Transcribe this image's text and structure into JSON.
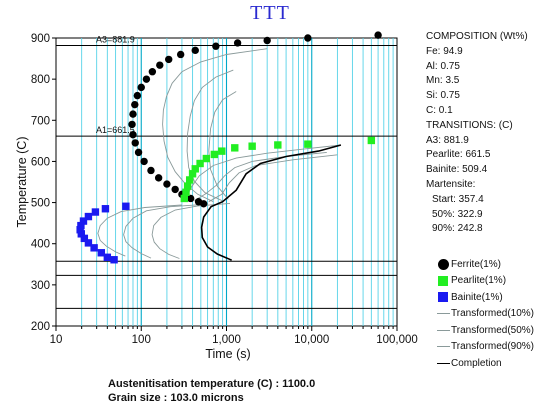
{
  "title": "TTT",
  "chart_data": {
    "type": "scatter",
    "xlabel": "Time (s)",
    "ylabel": "Temperature (C)",
    "x_scale": "log",
    "xlim": [
      10,
      100000
    ],
    "ylim": [
      200,
      900
    ],
    "x_ticks": [
      {
        "value": 10,
        "label": "10"
      },
      {
        "value": 100,
        "label": "100"
      },
      {
        "value": 1000,
        "label": "1,000"
      },
      {
        "value": 10000,
        "label": "10,000"
      },
      {
        "value": 100000,
        "label": "100,000"
      }
    ],
    "y_ticks": [
      200,
      300,
      400,
      500,
      600,
      700,
      800,
      900
    ],
    "grid": "vertical (log decades)",
    "horizontal_lines": [
      {
        "value": 881.9,
        "label": "A3=881.9"
      },
      {
        "value": 661.5,
        "label": "A1=661.5"
      },
      {
        "value": 357.4,
        "label": ""
      },
      {
        "value": 322.9,
        "label": ""
      },
      {
        "value": 242.8,
        "label": ""
      }
    ],
    "series": [
      {
        "name": "Ferrite(1%)",
        "marker": "circle",
        "color": "#000000",
        "points": [
          [
            540,
            497
          ],
          [
            470,
            502
          ],
          [
            380,
            510
          ],
          [
            300,
            520
          ],
          [
            250,
            532
          ],
          [
            200,
            545
          ],
          [
            160,
            560
          ],
          [
            130,
            578
          ],
          [
            108,
            600
          ],
          [
            93,
            622
          ],
          [
            85,
            645
          ],
          [
            80,
            665
          ],
          [
            78,
            690
          ],
          [
            80,
            715
          ],
          [
            84,
            738
          ],
          [
            90,
            760
          ],
          [
            100,
            780
          ],
          [
            115,
            800
          ],
          [
            135,
            818
          ],
          [
            165,
            834
          ],
          [
            210,
            848
          ],
          [
            290,
            860
          ],
          [
            430,
            870
          ],
          [
            750,
            880
          ],
          [
            1350,
            888
          ],
          [
            3000,
            894
          ],
          [
            9000,
            900
          ],
          [
            60000,
            907
          ]
        ]
      },
      {
        "name": "Pearlite(1%)",
        "marker": "square",
        "color": "#22ee22",
        "points": [
          [
            320,
            510
          ],
          [
            335,
            525
          ],
          [
            350,
            540
          ],
          [
            370,
            555
          ],
          [
            400,
            570
          ],
          [
            430,
            582
          ],
          [
            490,
            595
          ],
          [
            580,
            607
          ],
          [
            720,
            617
          ],
          [
            880,
            625
          ],
          [
            1250,
            633
          ],
          [
            2000,
            637
          ],
          [
            4000,
            640
          ],
          [
            9000,
            642
          ],
          [
            50000,
            651
          ]
        ]
      },
      {
        "name": "Bainite(1%)",
        "marker": "square",
        "color": "#1a1af0",
        "points": [
          [
            66,
            491
          ],
          [
            38,
            485
          ],
          [
            29,
            477
          ],
          [
            24,
            466
          ],
          [
            21,
            455
          ],
          [
            19.6,
            444
          ],
          [
            19.2,
            434
          ],
          [
            19.8,
            424
          ],
          [
            21.5,
            413
          ],
          [
            24,
            402
          ],
          [
            28,
            390
          ],
          [
            34,
            378
          ],
          [
            40,
            367
          ],
          [
            48,
            361
          ]
        ]
      }
    ],
    "curves": [
      {
        "name": "Transformed(10%)",
        "color": "#8a9a9a"
      },
      {
        "name": "Transformed(50%)",
        "color": "#8a9a9a"
      },
      {
        "name": "Transformed(90%)",
        "color": "#8a9a9a"
      },
      {
        "name": "Completion",
        "color": "#000000"
      }
    ]
  },
  "composition": {
    "heading": "COMPOSITION (Wt%)",
    "fe": "Fe: 94.9",
    "al": "Al: 0.75",
    "mn": "Mn: 3.5",
    "si": "Si: 0.75",
    "c": "C: 0.1"
  },
  "transitions": {
    "heading": "TRANSITIONS: (C)",
    "a3": "A3: 881.9",
    "pearlite": "Pearlite: 661.5",
    "bainite": "Bainite: 509.4",
    "martensite": "Martensite:",
    "start": "Start: 357.4",
    "p50": "50%:   322.9",
    "p90": "90%:   242.8"
  },
  "legend": {
    "ferrite": "Ferrite(1%)",
    "pearlite": "Pearlite(1%)",
    "bainite": "Bainite(1%)",
    "t10": "Transformed(10%)",
    "t50": "Transformed(50%)",
    "t90": "Transformed(90%)",
    "completion": "Completion"
  },
  "footer": {
    "austenitisation": "Austenitisation temperature (C) : 1100.0",
    "grain": "Grain size : 103.0 microns"
  }
}
